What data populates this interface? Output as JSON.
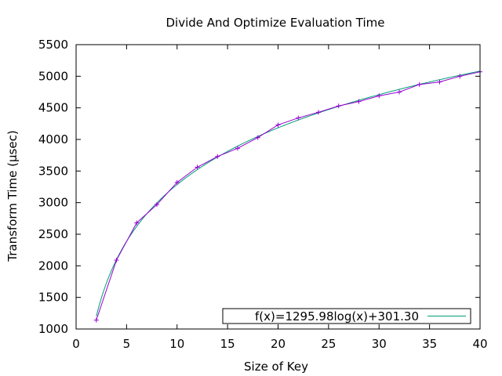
{
  "chart_data": {
    "type": "line",
    "title": "Divide And Optimize Evaluation Time",
    "xlabel": "Size of Key",
    "ylabel": "Transform Time (µsec)",
    "xlim": [
      0,
      40
    ],
    "ylim": [
      1000,
      5500
    ],
    "xticks": [
      0,
      5,
      10,
      15,
      20,
      25,
      30,
      35,
      40
    ],
    "yticks": [
      1000,
      1500,
      2000,
      2500,
      3000,
      3500,
      4000,
      4500,
      5000,
      5500
    ],
    "grid": false,
    "legend_position": "bottom-right",
    "series": [
      {
        "kind": "measured",
        "marker": "plus",
        "color": "#9400d3",
        "x": [
          2,
          4,
          6,
          8,
          10,
          12,
          14,
          16,
          18,
          20,
          22,
          24,
          26,
          28,
          30,
          32,
          34,
          36,
          38,
          40
        ],
        "y": [
          1140,
          2090,
          2680,
          2970,
          3320,
          3560,
          3730,
          3860,
          4030,
          4230,
          4340,
          4430,
          4530,
          4600,
          4690,
          4750,
          4870,
          4910,
          5000,
          5070
        ]
      },
      {
        "kind": "fit",
        "name": "f(x)=1295.98log(x)+301.30",
        "formula": {
          "a": 1295.98,
          "b": 301.3,
          "log": "natural"
        },
        "x_range": [
          2,
          40
        ],
        "color": "#009e73"
      }
    ]
  }
}
